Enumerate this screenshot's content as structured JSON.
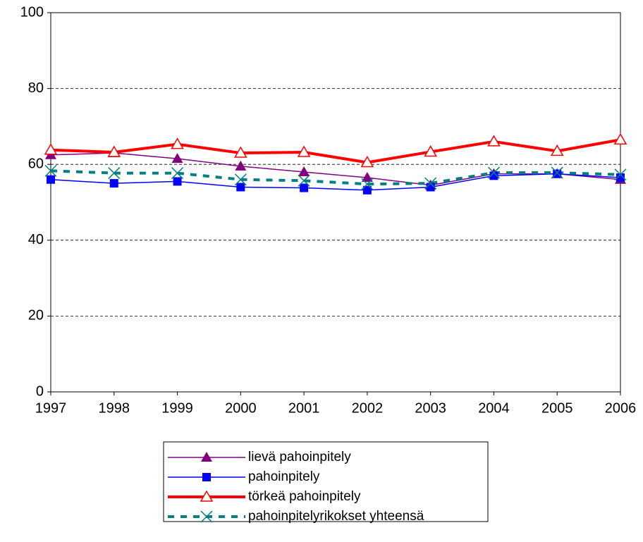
{
  "chart_data": {
    "type": "line",
    "categories": [
      "1997",
      "1998",
      "1999",
      "2000",
      "2001",
      "2002",
      "2003",
      "2004",
      "2005",
      "2006"
    ],
    "series": [
      {
        "name": "lievä pahoinpitely",
        "color": "#800080",
        "marker": "triangle-filled",
        "values": [
          62.5,
          63,
          61.5,
          59.5,
          58,
          56.5,
          54.5,
          57.5,
          57.5,
          56
        ]
      },
      {
        "name": "pahoinpitely",
        "color": "#0000ff",
        "marker": "square",
        "values": [
          56,
          55,
          55.5,
          54,
          53.8,
          53.2,
          54,
          57,
          57.5,
          56.5
        ]
      },
      {
        "name": "törkeä pahoinpitely",
        "color": "#ff0000",
        "marker": "triangle-open",
        "values": [
          63.8,
          63.2,
          65.3,
          63,
          63.2,
          60.5,
          63.3,
          66,
          63.5,
          66.5
        ]
      },
      {
        "name": "pahoinpitelyrikokset yhteensä",
        "color": "#008080",
        "marker": "x",
        "dashed": true,
        "values": [
          58.3,
          57.7,
          57.7,
          56,
          55.7,
          54.8,
          55,
          57.8,
          57.8,
          57.3
        ]
      }
    ],
    "ylim": [
      0,
      100
    ],
    "yticks": [
      0,
      20,
      40,
      60,
      80,
      100
    ],
    "grid": true,
    "legend": "bottom"
  }
}
